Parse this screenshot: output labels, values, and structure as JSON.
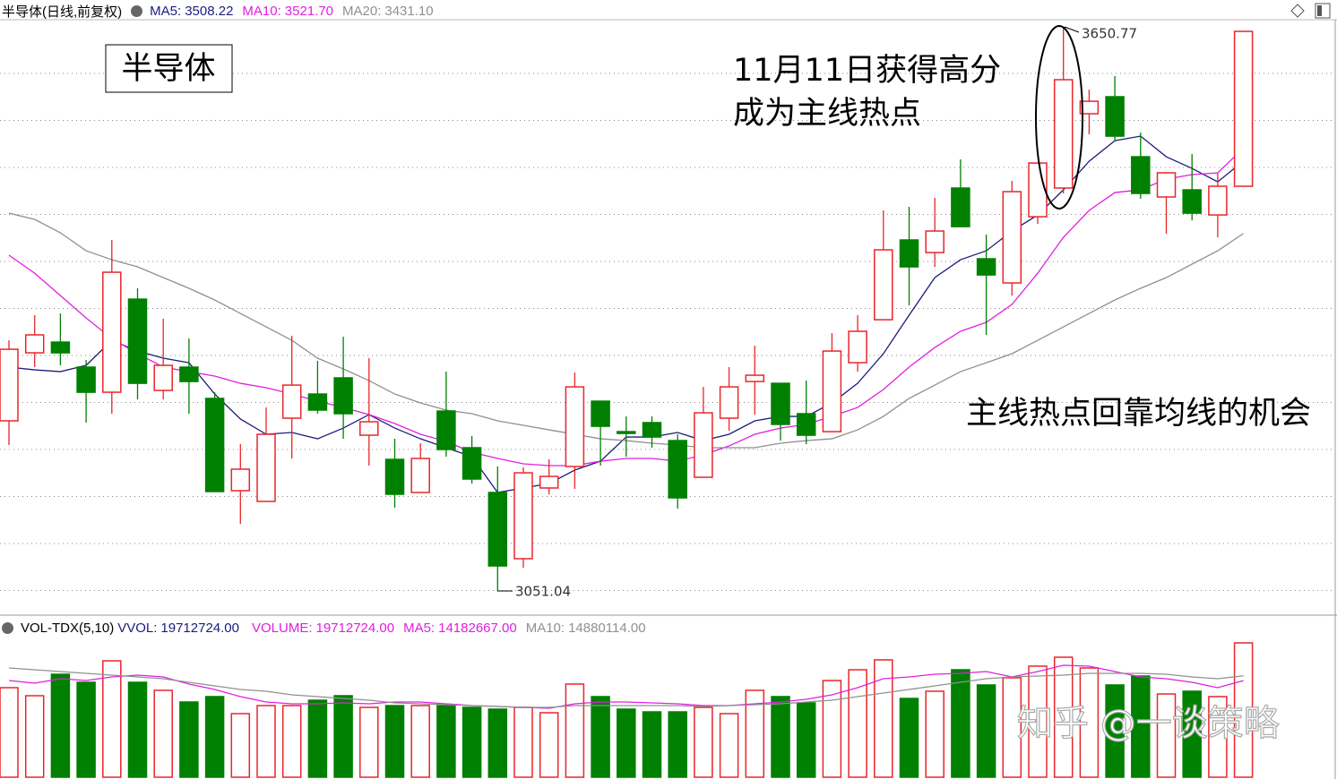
{
  "chart_data": [
    {
      "type": "candlestick",
      "title": "半导体(日线,前复权)",
      "ylim": [
        3027.2,
        3658.4
      ],
      "up_color": "#e8262a",
      "down_color": "#008000",
      "candles": {
        "open": [
          3231.9,
          3304.2,
          3315.6,
          3289.0,
          3262.3,
          3361.3,
          3264.2,
          3289.0,
          3255.7,
          3157.6,
          3146.2,
          3234.7,
          3260.4,
          3277.6,
          3216.6,
          3190.9,
          3155.7,
          3242.3,
          3203.3,
          3155.7,
          3085.3,
          3160.5,
          3183.3,
          3252.8,
          3220.4,
          3230.0,
          3210.9,
          3171.9,
          3234.7,
          3273.7,
          3271.8,
          3239.5,
          3220.4,
          3293.7,
          3339.4,
          3424.2,
          3410.8,
          3479.4,
          3404.2,
          3378.5,
          3448.9,
          3479.4,
          3558.4,
          3576.5,
          3512.7,
          3469.9,
          3477.5,
          3450.8,
          3481.3
        ],
        "high": [
          3317.5,
          3344.2,
          3346.1,
          3296.6,
          3424.2,
          3372.8,
          3340.4,
          3319.4,
          3262.3,
          3207.1,
          3246.1,
          3322.3,
          3295.6,
          3321.3,
          3298.5,
          3212.8,
          3208.1,
          3284.2,
          3215.7,
          3183.3,
          3182.4,
          3190.9,
          3283.3,
          3252.8,
          3236.6,
          3236.6,
          3217.6,
          3268.0,
          3289.0,
          3311.8,
          3271.8,
          3274.7,
          3325.2,
          3344.2,
          3455.6,
          3459.4,
          3468.9,
          3509.8,
          3429.9,
          3487.0,
          3506.0,
          3650.77,
          3584.1,
          3598.4,
          3538.4,
          3496.5,
          3515.6,
          3495.6,
          3646.0
        ],
        "low": [
          3206.2,
          3289.0,
          3290.9,
          3230.0,
          3239.5,
          3254.7,
          3254.7,
          3239.5,
          3156.7,
          3122.4,
          3146.2,
          3191.9,
          3239.5,
          3212.8,
          3184.3,
          3139.5,
          3155.7,
          3193.8,
          3165.2,
          3051.04,
          3075.7,
          3153.8,
          3159.5,
          3184.3,
          3193.8,
          3203.3,
          3138.6,
          3171.9,
          3221.4,
          3238.5,
          3210.9,
          3207.1,
          3220.4,
          3284.2,
          3339.4,
          3354.7,
          3395.6,
          3438.4,
          3323.3,
          3365.1,
          3441.3,
          3473.7,
          3536.5,
          3528.9,
          3468.0,
          3430.8,
          3445.1,
          3427.0,
          3481.3
        ],
        "close": [
          3308.0,
          3323.3,
          3304.2,
          3262.3,
          3389.9,
          3271.8,
          3290.9,
          3273.7,
          3156.7,
          3180.5,
          3217.6,
          3269.9,
          3243.3,
          3239.5,
          3230.9,
          3153.8,
          3191.9,
          3201.4,
          3170.0,
          3077.6,
          3176.6,
          3172.8,
          3268.0,
          3226.1,
          3218.5,
          3214.7,
          3150.0,
          3240.4,
          3268.0,
          3280.4,
          3228.1,
          3216.6,
          3306.1,
          3327.1,
          3413.7,
          3395.6,
          3433.7,
          3438.4,
          3387.0,
          3475.6,
          3506.0,
          3594.6,
          3571.7,
          3534.6,
          3473.7,
          3495.6,
          3452.7,
          3481.3,
          3646.0
        ]
      },
      "series": [
        {
          "name": "MA5:",
          "color": "#1c1c7c",
          "latest_label": "3508.22",
          "values": [
            3289.0,
            3286.1,
            3284.2,
            3290.9,
            3317.5,
            3306.1,
            3298.5,
            3293.7,
            3260.4,
            3233.8,
            3217.6,
            3219.5,
            3212.8,
            3224.2,
            3238.5,
            3224.2,
            3212.8,
            3203.3,
            3193.8,
            3155.7,
            3160.5,
            3165.2,
            3179.5,
            3189.0,
            3214.7,
            3214.7,
            3219.5,
            3210.9,
            3217.6,
            3231.9,
            3236.6,
            3236.6,
            3250.9,
            3271.8,
            3303.3,
            3344.2,
            3384.2,
            3403.2,
            3412.7,
            3433.7,
            3450.8,
            3477.5,
            3507.9,
            3529.8,
            3534.6,
            3512.7,
            3500.3,
            3486.0,
            3508.22
          ]
        },
        {
          "name": "MA10:",
          "color": "#e020e0",
          "latest_label": "3521.70",
          "values": [
            3408.0,
            3388.9,
            3365.1,
            3341.3,
            3319.4,
            3303.3,
            3289.0,
            3284.2,
            3279.5,
            3271.8,
            3267.1,
            3260.4,
            3252.8,
            3246.1,
            3238.5,
            3229.0,
            3217.6,
            3210.0,
            3198.5,
            3191.9,
            3186.2,
            3184.3,
            3184.3,
            3189.0,
            3191.9,
            3191.9,
            3189.0,
            3195.7,
            3205.2,
            3217.6,
            3224.2,
            3228.1,
            3236.6,
            3246.1,
            3265.2,
            3289.0,
            3309.9,
            3327.1,
            3336.6,
            3355.6,
            3388.9,
            3427.0,
            3455.6,
            3474.6,
            3477.5,
            3488.9,
            3493.7,
            3495.6,
            3521.7
          ]
        },
        {
          "name": "MA20:",
          "color": "#909090",
          "latest_label": "3431.10",
          "values": [
            3452.7,
            3446.1,
            3431.8,
            3412.7,
            3403.2,
            3395.6,
            3384.2,
            3372.8,
            3360.4,
            3346.1,
            3331.8,
            3317.5,
            3298.5,
            3287.1,
            3274.7,
            3260.4,
            3250.9,
            3243.3,
            3239.5,
            3231.9,
            3227.1,
            3222.3,
            3217.6,
            3212.8,
            3210.9,
            3208.1,
            3206.2,
            3203.3,
            3203.3,
            3203.3,
            3208.1,
            3210.9,
            3212.8,
            3222.3,
            3236.6,
            3255.7,
            3269.9,
            3284.2,
            3293.7,
            3303.3,
            3317.5,
            3331.8,
            3346.1,
            3360.4,
            3372.8,
            3384.2,
            3398.5,
            3412.7,
            3431.1
          ]
        }
      ],
      "label_box": "半导体",
      "annotations": [
        "11月11日获得高分",
        "成为主线热点",
        "主线热点回靠均线的机会"
      ],
      "watermark": "知乎 @一谈策略"
    },
    {
      "type": "bar",
      "title": "VOL-TDX(5,10)",
      "ylim": [
        0,
        20107000
      ],
      "vvol": {
        "name": "VVOL:",
        "color": "#1c1c7c",
        "value": 19712724,
        "value_label": "19712724.00"
      },
      "volume": {
        "name": "VOLUME:",
        "color": "#e020e0",
        "latest_label": "19712724.00",
        "values": [
          13140000,
          11960000,
          15110000,
          13930000,
          17080000,
          13930000,
          12750000,
          11040000,
          11830000,
          9330000,
          10510000,
          10510000,
          11300000,
          11960000,
          10250000,
          10510000,
          10510000,
          10510000,
          10250000,
          9990000,
          10250000,
          9460000,
          13670000,
          11830000,
          9990000,
          9590000,
          9590000,
          10250000,
          9330000,
          12750000,
          11830000,
          10910000,
          14190000,
          15770000,
          17220000,
          11560000,
          12620000,
          15770000,
          13540000,
          14590000,
          16300000,
          17610000,
          16030000,
          13540000,
          14850000,
          12220000,
          12620000,
          11830000,
          19712724
        ]
      },
      "series": [
        {
          "name": "MA5:",
          "color": "#e020e0",
          "latest_label": "14182667.00",
          "values": [
            14193000,
            13799000,
            14456000,
            14193000,
            14719000,
            14982000,
            14719000,
            13667000,
            12879000,
            11828000,
            11039000,
            10776000,
            10776000,
            10908000,
            10776000,
            11039000,
            11039000,
            10776000,
            10513000,
            10382000,
            10251000,
            10119000,
            10776000,
            11039000,
            11039000,
            10908000,
            10776000,
            10513000,
            10513000,
            10776000,
            11039000,
            11433000,
            12090000,
            13142000,
            14456000,
            14719000,
            15113000,
            15244000,
            15507000,
            14719000,
            15507000,
            16427000,
            16296000,
            15507000,
            14719000,
            14456000,
            13930000,
            13142000,
            14182667
          ]
        },
        {
          "name": "MA10:",
          "color": "#909090",
          "latest_label": "14880114.00",
          "values": [
            16033000,
            15770000,
            15507000,
            15244000,
            14982000,
            14719000,
            14456000,
            13930000,
            13405000,
            12879000,
            12616000,
            12090000,
            11828000,
            11565000,
            11302000,
            10908000,
            10776000,
            10645000,
            10513000,
            10382000,
            10251000,
            10251000,
            10513000,
            10513000,
            10513000,
            10513000,
            10513000,
            10382000,
            10513000,
            10645000,
            10776000,
            11039000,
            11302000,
            11828000,
            12353000,
            12879000,
            13405000,
            13930000,
            14456000,
            14719000,
            14850000,
            14982000,
            15244000,
            15244000,
            15244000,
            15113000,
            14719000,
            14456000,
            14880114
          ]
        }
      ]
    }
  ]
}
